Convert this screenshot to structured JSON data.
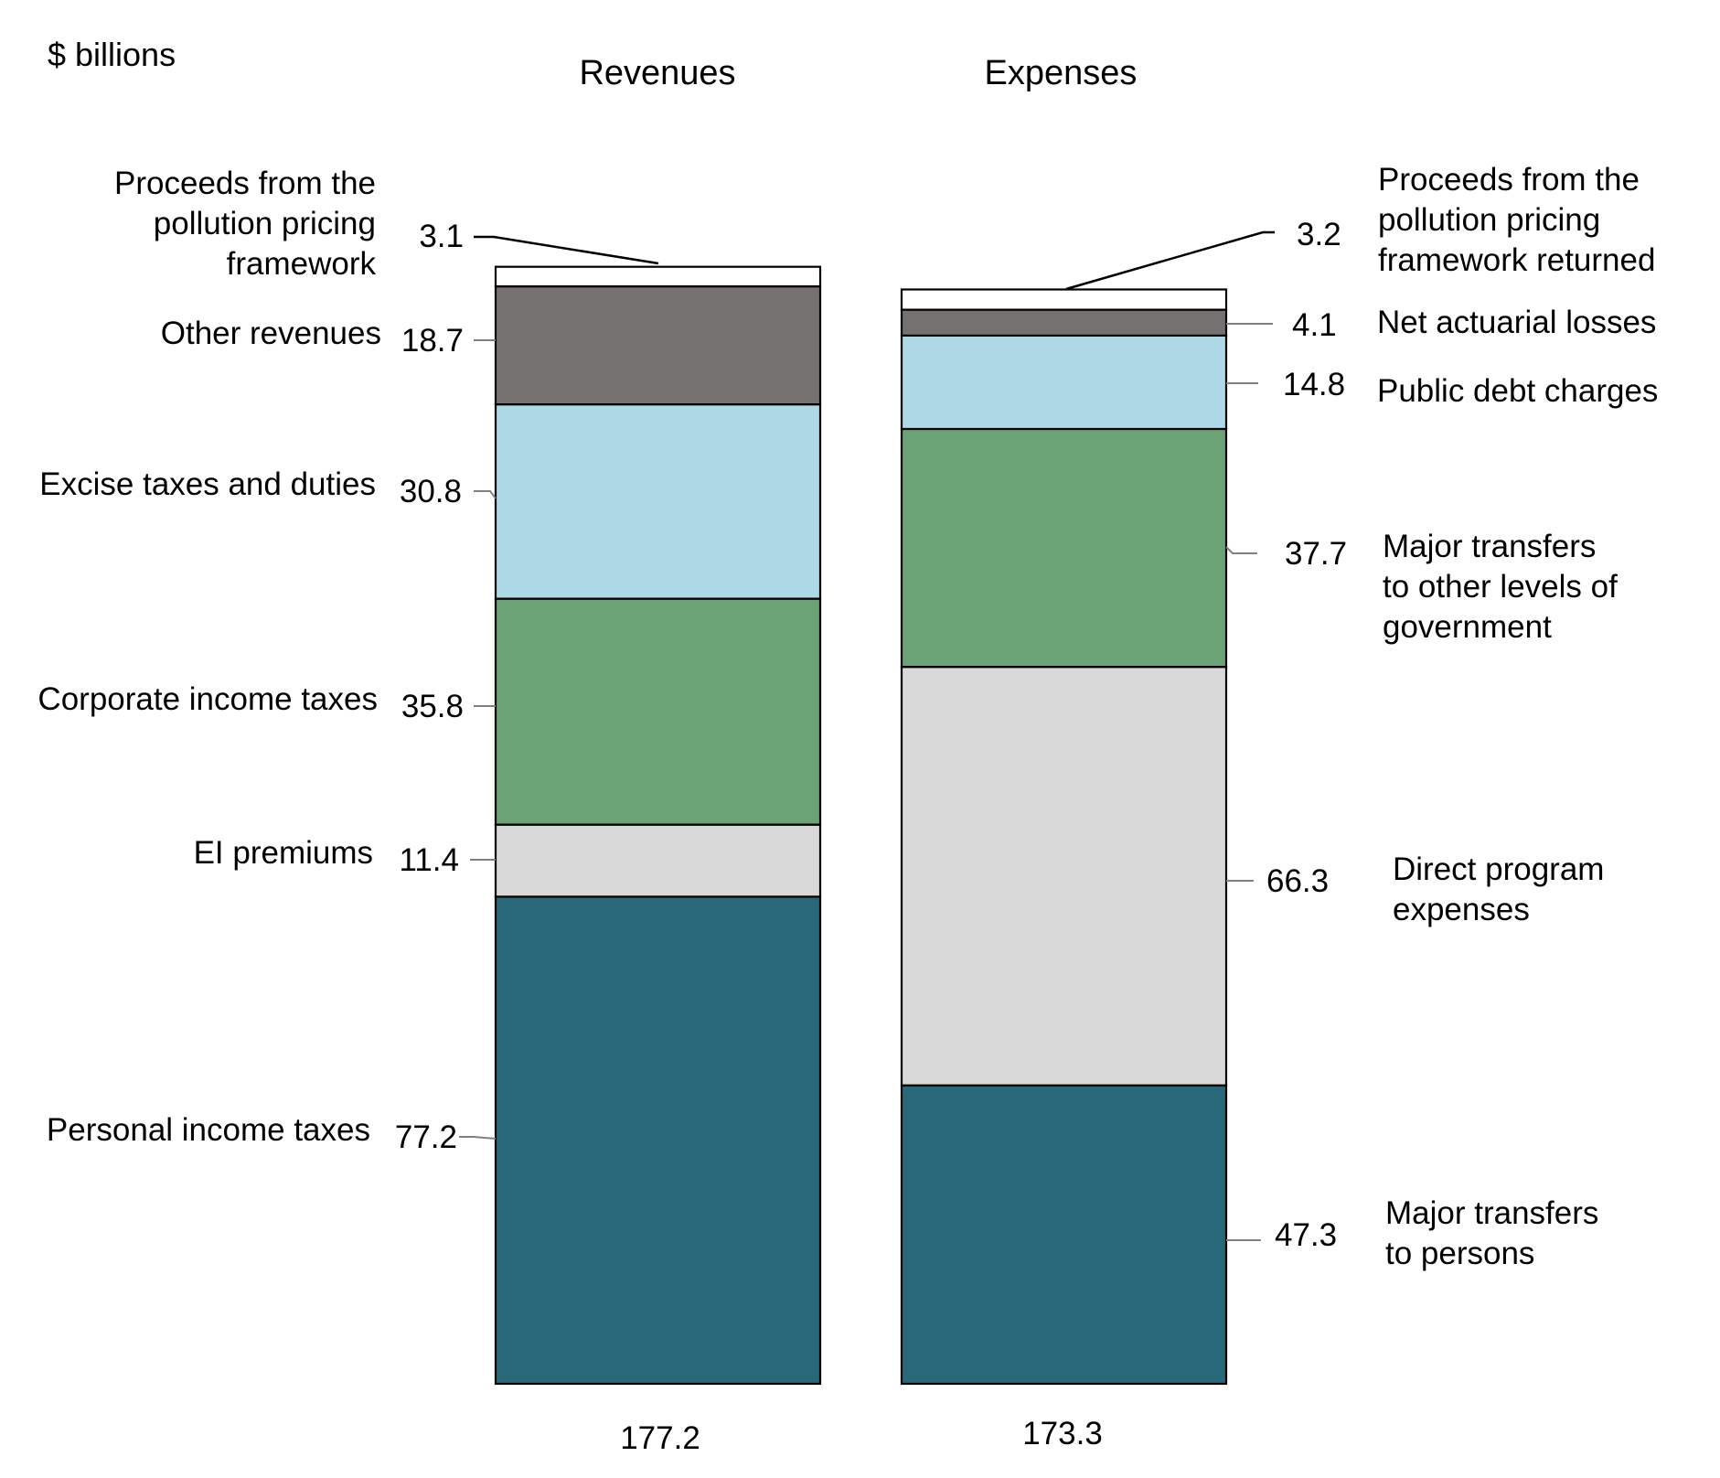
{
  "chart_data": {
    "type": "bar",
    "stacked": true,
    "unit_label": "$ billions",
    "categories": [
      "Revenues",
      "Expenses"
    ],
    "totals": [
      "177.2",
      "173.3"
    ],
    "colors": {
      "teal": "#286879",
      "light_grey": "#d9d9d9",
      "green": "#6ba376",
      "light_blue": "#add8e6",
      "dark_grey": "#767171",
      "white": "#ffffff",
      "outline": "#000000",
      "leader": "#808080"
    },
    "stacks": [
      {
        "category": "Revenues",
        "segments": [
          {
            "name": [
              "Personal income taxes"
            ],
            "value": 77.2,
            "label": "77.2",
            "color": "#286879"
          },
          {
            "name": [
              "EI premiums"
            ],
            "value": 11.4,
            "label": "11.4",
            "color": "#d9d9d9"
          },
          {
            "name": [
              "Corporate income taxes"
            ],
            "value": 35.8,
            "label": "35.8",
            "color": "#6ba376"
          },
          {
            "name": [
              "Excise taxes and duties"
            ],
            "value": 30.8,
            "label": "30.8",
            "color": "#add8e6"
          },
          {
            "name": [
              "Other revenues"
            ],
            "value": 18.7,
            "label": "18.7",
            "color": "#767171"
          },
          {
            "name": [
              "Proceeds from the",
              "pollution pricing",
              "framework"
            ],
            "value": 3.1,
            "label": "3.1",
            "color": "#ffffff"
          }
        ]
      },
      {
        "category": "Expenses",
        "segments": [
          {
            "name": [
              "Major transfers",
              "to persons"
            ],
            "value": 47.3,
            "label": "47.3",
            "color": "#286879"
          },
          {
            "name": [
              "Direct program",
              "expenses"
            ],
            "value": 66.3,
            "label": "66.3",
            "color": "#d9d9d9"
          },
          {
            "name": [
              "Major transfers",
              "to other levels of",
              "government"
            ],
            "value": 37.7,
            "label": "37.7",
            "color": "#6ba376"
          },
          {
            "name": [
              "Public debt charges"
            ],
            "value": 14.8,
            "label": "14.8",
            "color": "#add8e6"
          },
          {
            "name": [
              "Net actuarial losses"
            ],
            "value": 4.1,
            "label": "4.1",
            "color": "#767171"
          },
          {
            "name": [
              "Proceeds from the",
              "pollution pricing",
              "framework returned"
            ],
            "value": 3.2,
            "label": "3.2",
            "color": "#ffffff"
          }
        ]
      }
    ]
  }
}
